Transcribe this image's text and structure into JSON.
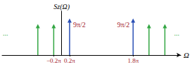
{
  "chart_data": {
    "type": "stem",
    "ylabel": "Sz(Ω)",
    "xlabel": "Ω",
    "xlim": [
      -1.5,
      3.0
    ],
    "ylim": [
      0,
      17
    ],
    "xticks": [
      {
        "value": -0.2,
        "label": "−0.2π"
      },
      {
        "value": 0.2,
        "label": "0.2π"
      },
      {
        "value": 1.8,
        "label": "1.8π"
      }
    ],
    "tick_labels": "x",
    "series": [
      {
        "color": "#33a643",
        "x": [
          -0.6,
          -0.2,
          2.2,
          2.6
        ],
        "values": [
          12,
          12,
          12,
          12
        ]
      },
      {
        "color": "#2a4fb5",
        "x": [
          0.2,
          1.8
        ],
        "values": [
          14.14,
          14.14
        ],
        "value_labels": [
          "9π/2",
          "9π/2"
        ]
      }
    ],
    "annotations": [
      "...",
      "..."
    ]
  }
}
